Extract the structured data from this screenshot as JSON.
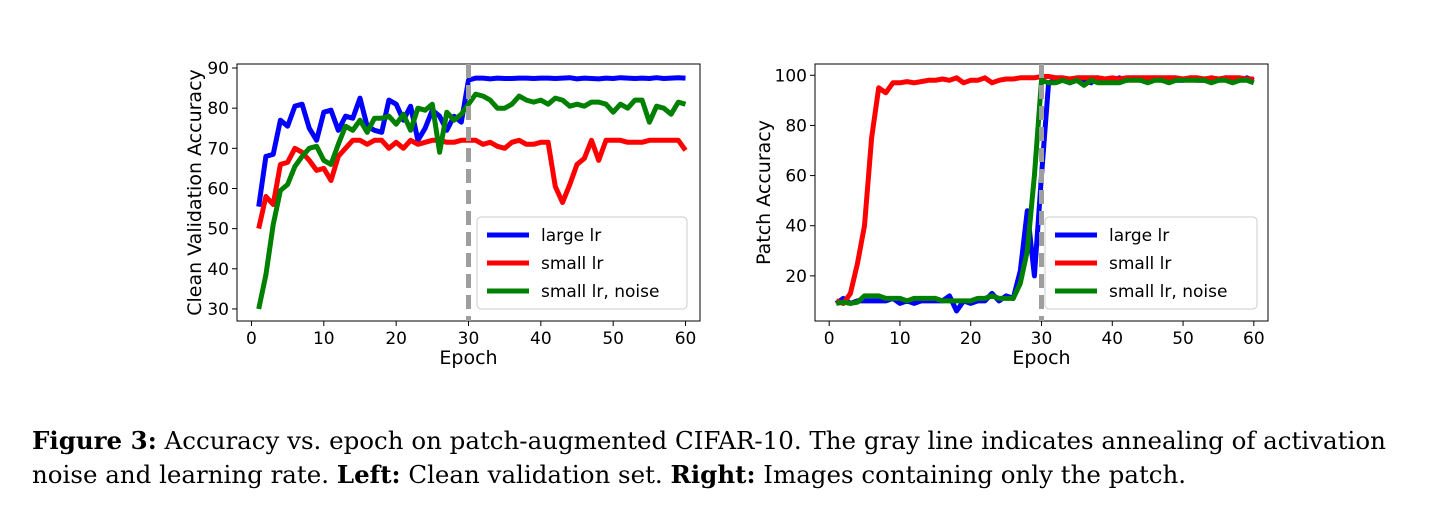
{
  "caption": {
    "figure_label": "Figure 3:",
    "text1": " Accuracy vs. epoch on patch-augmented CIFAR-10. The gray line indicates annealing of activation noise and learning rate. ",
    "left_label": "Left:",
    "left_text": " Clean validation set. ",
    "right_label": "Right:",
    "right_text": " Images containing only the patch."
  },
  "chart_data": [
    {
      "type": "line",
      "xlabel": "Epoch",
      "ylabel": "Clean Validation Accuracy",
      "xlim": [
        -2,
        62
      ],
      "ylim": [
        27.0,
        91.0
      ],
      "xticks": [
        0,
        10,
        20,
        30,
        40,
        50,
        60
      ],
      "yticks": [
        30,
        40,
        50,
        60,
        70,
        80,
        90
      ],
      "grid": false,
      "legend": "lower-right",
      "vline": {
        "x": 30,
        "color": "#9e9e9e",
        "style": "dashed"
      },
      "x": [
        1,
        2,
        3,
        4,
        5,
        6,
        7,
        8,
        9,
        10,
        11,
        12,
        13,
        14,
        15,
        16,
        17,
        18,
        19,
        20,
        21,
        22,
        23,
        24,
        25,
        26,
        27,
        28,
        29,
        30,
        31,
        32,
        33,
        34,
        35,
        36,
        37,
        38,
        39,
        40,
        41,
        42,
        43,
        44,
        45,
        46,
        47,
        48,
        49,
        50,
        51,
        52,
        53,
        54,
        55,
        56,
        57,
        58,
        59,
        60
      ],
      "series": [
        {
          "name": "large lr",
          "color": "#0000ff",
          "values": [
            55.5,
            68,
            68.5,
            77,
            75.5,
            80.5,
            81,
            75,
            72,
            79,
            79.5,
            74.5,
            78,
            77.5,
            82.5,
            75.5,
            74.5,
            74,
            82,
            81,
            77,
            80.5,
            72,
            75,
            79.5,
            78,
            74.5,
            78,
            76.5,
            87,
            87.5,
            87.5,
            87.3,
            87.5,
            87.4,
            87.4,
            87.5,
            87.5,
            87.4,
            87.5,
            87.5,
            87.4,
            87.5,
            87.6,
            87.3,
            87.5,
            87.4,
            87.3,
            87.5,
            87.4,
            87.6,
            87.5,
            87.4,
            87.5,
            87.4,
            87.6,
            87.4,
            87.5,
            87.6,
            87.5
          ]
        },
        {
          "name": "small lr",
          "color": "#ff0000",
          "values": [
            50,
            58,
            56,
            66,
            66.5,
            70,
            69,
            67,
            64.5,
            65,
            62,
            68,
            70,
            72,
            72,
            71,
            72,
            72,
            70,
            71.5,
            70,
            72,
            71,
            71.5,
            72,
            72,
            71.5,
            71.5,
            72,
            72,
            72,
            71,
            71.5,
            70.5,
            70,
            71.5,
            72,
            71,
            71,
            71.5,
            71.5,
            60.5,
            56.5,
            61,
            66,
            67.5,
            72,
            67,
            72,
            72,
            72,
            71.5,
            71.5,
            71.5,
            72,
            72,
            72,
            72,
            72,
            69.5
          ]
        },
        {
          "name": "small lr, noise",
          "color": "#008000",
          "values": [
            30,
            38.5,
            51,
            59.5,
            61,
            65.5,
            68,
            70,
            70.5,
            67,
            66,
            71,
            75.5,
            74.5,
            77,
            74,
            77.5,
            77.5,
            78,
            76,
            78.5,
            74.5,
            80,
            79.5,
            81,
            69,
            79,
            77,
            78.5,
            81,
            83.5,
            83,
            82,
            80,
            80,
            81,
            83,
            82,
            81.5,
            82,
            81,
            82.5,
            82,
            80.5,
            81,
            80.5,
            81.5,
            81.5,
            81,
            79,
            81,
            80,
            82,
            82,
            76.5,
            80.5,
            80,
            78.5,
            81.5,
            81
          ]
        }
      ]
    },
    {
      "type": "line",
      "xlabel": "Epoch",
      "ylabel": "Patch Accuracy",
      "xlim": [
        -2,
        62
      ],
      "ylim": [
        2,
        104.5
      ],
      "xticks": [
        0,
        10,
        20,
        30,
        40,
        50,
        60
      ],
      "yticks": [
        20,
        40,
        60,
        80,
        100
      ],
      "grid": false,
      "legend": "lower-right",
      "vline": {
        "x": 30,
        "color": "#9e9e9e",
        "style": "dashed"
      },
      "x": [
        1,
        2,
        3,
        4,
        5,
        6,
        7,
        8,
        9,
        10,
        11,
        12,
        13,
        14,
        15,
        16,
        17,
        18,
        19,
        20,
        21,
        22,
        23,
        24,
        25,
        26,
        27,
        28,
        29,
        30,
        31,
        32,
        33,
        34,
        35,
        36,
        37,
        38,
        39,
        40,
        41,
        42,
        43,
        44,
        45,
        46,
        47,
        48,
        49,
        50,
        51,
        52,
        53,
        54,
        55,
        56,
        57,
        58,
        59,
        60
      ],
      "series": [
        {
          "name": "large lr",
          "color": "#0000ff",
          "values": [
            9,
            11,
            9,
            10,
            10,
            10,
            10,
            10,
            11,
            9,
            10,
            9,
            10,
            10,
            10,
            10,
            12,
            6,
            10,
            9,
            10,
            10,
            13,
            10,
            12,
            11,
            22,
            46,
            20,
            60,
            97,
            98,
            98,
            97,
            98,
            98,
            97,
            99,
            98,
            98,
            99,
            98,
            99,
            98,
            98,
            99,
            98,
            99,
            98,
            98,
            99,
            98,
            98,
            99,
            98,
            99,
            98,
            98,
            99,
            98
          ]
        },
        {
          "name": "small lr",
          "color": "#ff0000",
          "values": [
            10,
            9,
            13,
            25,
            40,
            75,
            95,
            93,
            97,
            97,
            97.5,
            97,
            97.5,
            98,
            98,
            98.5,
            98,
            99,
            97,
            98,
            98,
            99,
            97,
            98,
            98.5,
            98.5,
            99,
            99,
            99,
            99.5,
            99.5,
            99,
            99,
            98.5,
            99,
            99,
            99,
            99,
            98.5,
            99,
            98.5,
            99,
            99,
            99,
            99,
            99,
            99,
            99,
            99,
            98.5,
            99,
            99,
            98.5,
            99,
            98.5,
            99,
            99,
            99,
            98.5,
            98.5
          ]
        },
        {
          "name": "small lr, noise",
          "color": "#008000",
          "values": [
            9,
            9.5,
            9,
            9.5,
            12,
            12,
            12,
            11,
            11,
            11,
            10,
            11,
            11,
            11,
            11,
            10,
            10,
            10,
            10,
            10,
            11,
            11,
            12,
            11,
            11,
            11,
            17,
            30,
            60,
            98,
            97,
            97,
            98,
            97,
            98,
            96,
            98,
            97,
            97,
            97,
            97,
            98,
            98,
            98,
            97,
            98,
            98,
            97,
            98,
            98,
            98,
            98,
            98,
            97,
            98,
            98,
            97,
            98,
            98,
            97
          ]
        }
      ]
    }
  ]
}
